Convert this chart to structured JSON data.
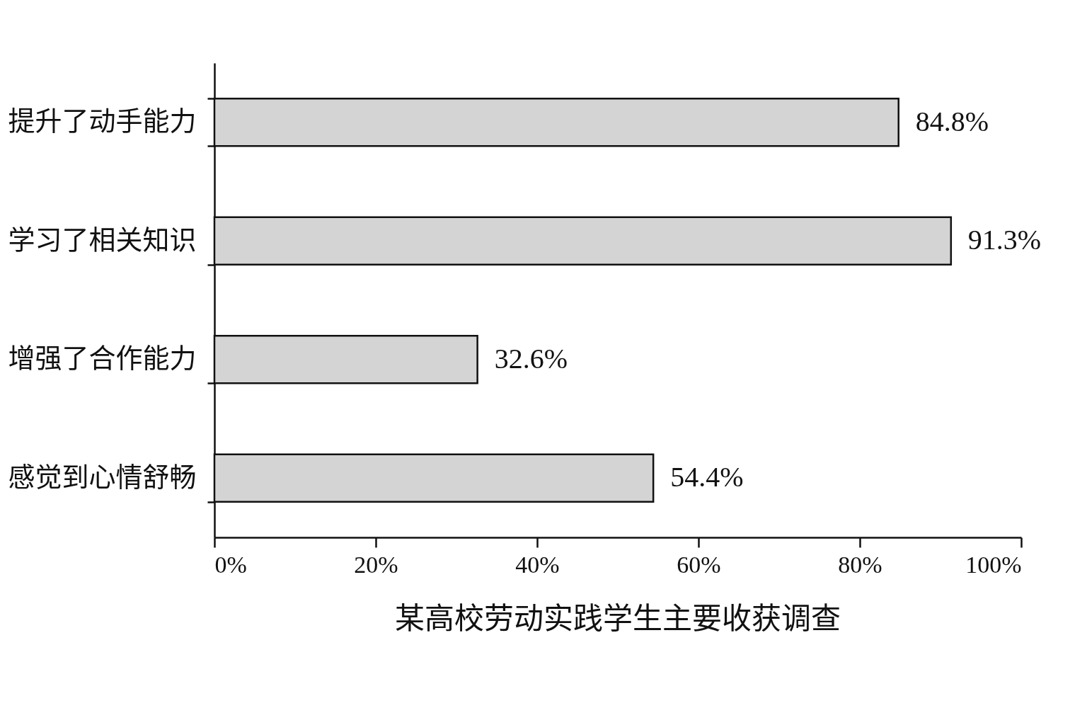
{
  "chart_data": {
    "type": "bar",
    "orientation": "horizontal",
    "title": "某高校劳动实践学生主要收获调查",
    "categories": [
      "提升了动手能力",
      "学习了相关知识",
      "增强了合作能力",
      "感觉到心情舒畅"
    ],
    "values": [
      84.8,
      91.3,
      32.6,
      54.4
    ],
    "value_labels": [
      "84.8%",
      "91.3%",
      "32.6%",
      "54.4%"
    ],
    "color": "#d4d4d4",
    "xlim": [
      0,
      100
    ],
    "xticks": [
      {
        "value": 0,
        "label": "0%"
      },
      {
        "value": 20,
        "label": "20%"
      },
      {
        "value": 40,
        "label": "40%"
      },
      {
        "value": 60,
        "label": "60%"
      },
      {
        "value": 80,
        "label": "80%"
      },
      {
        "value": 100,
        "label": "100%"
      }
    ]
  }
}
